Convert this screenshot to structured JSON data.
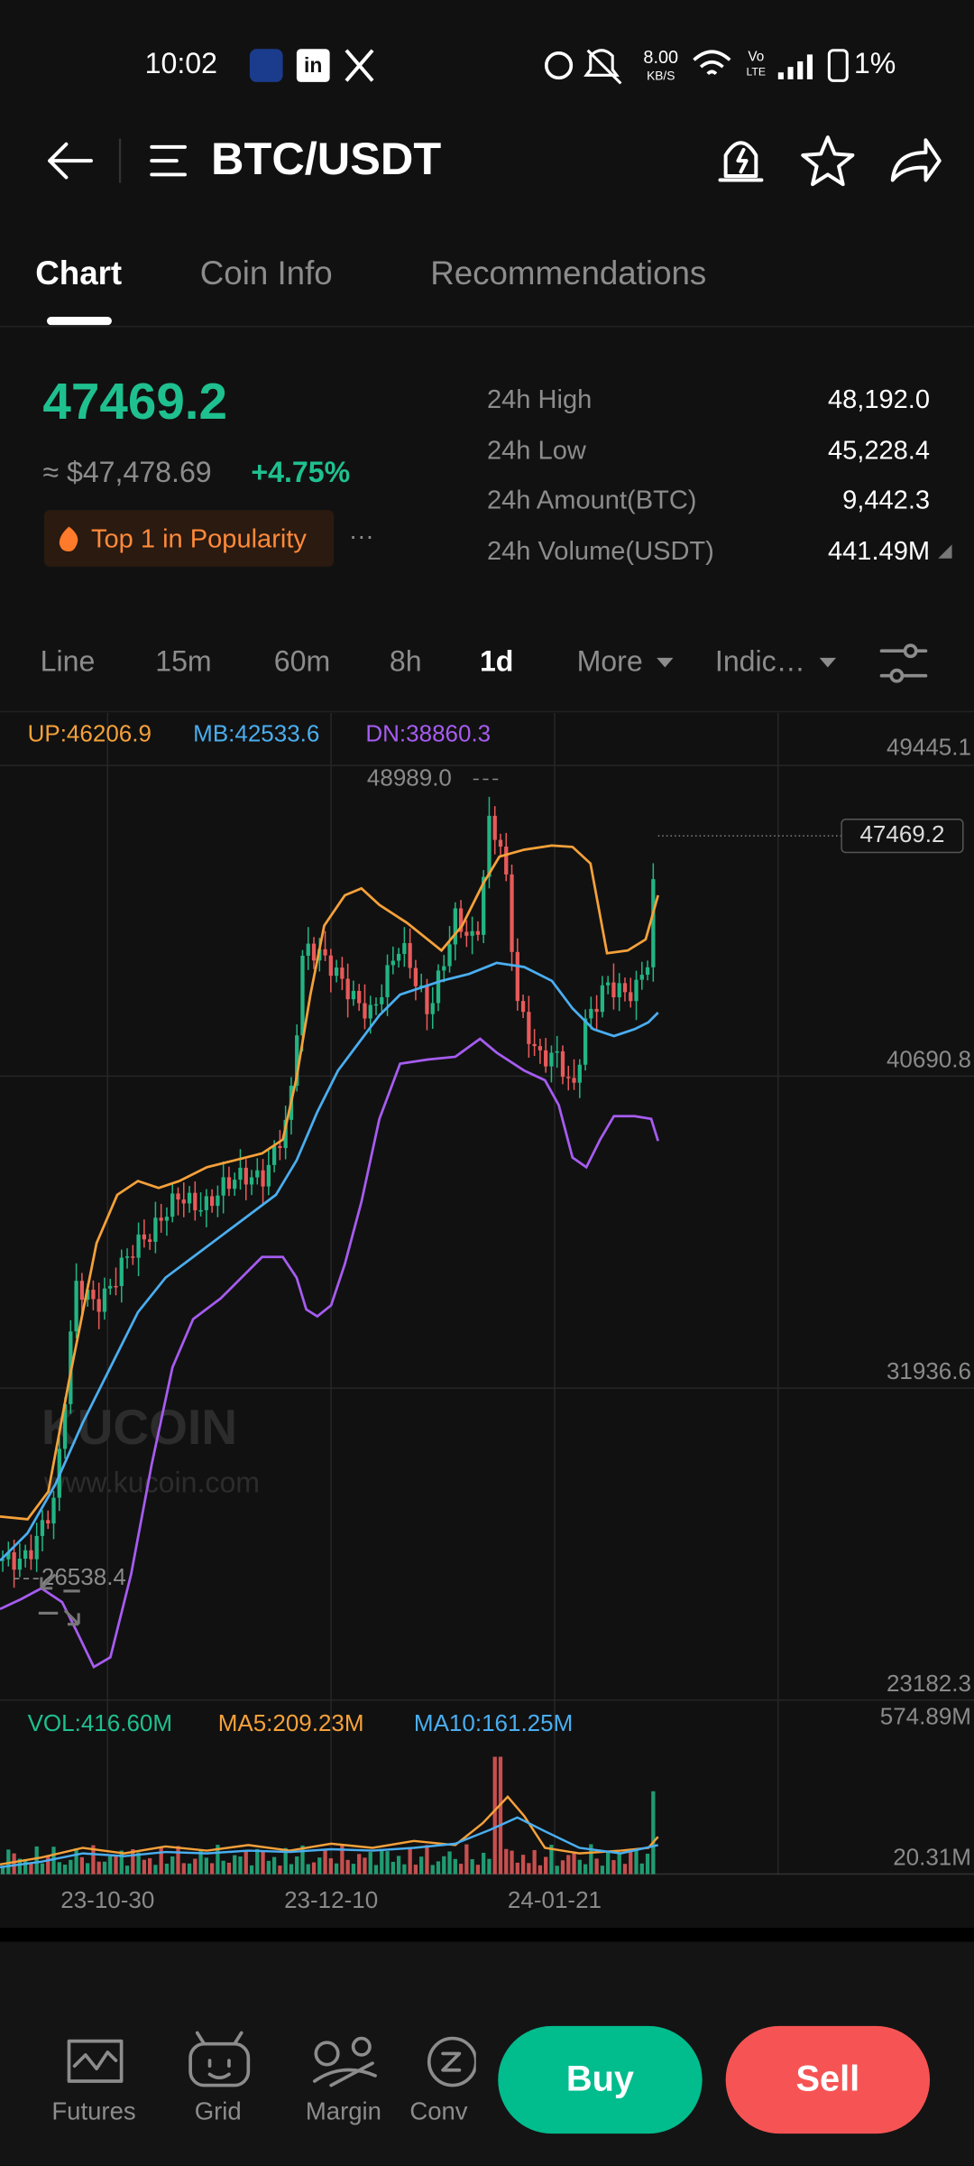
{
  "status_bar": {
    "time": "10:02",
    "net_speed": "8.00",
    "net_unit": "KB/S",
    "volte_top": "Vo",
    "volte_bottom": "LTE",
    "battery": "1%"
  },
  "header": {
    "title": "BTC/USDT"
  },
  "tabs": [
    "Chart",
    "Coin Info",
    "Recommendations"
  ],
  "price": {
    "last": "47469.2",
    "fiat": "≈ $47,478.69",
    "change": "+4.75%",
    "badge": "Top 1 in Popularity",
    "more": "···"
  },
  "stats": [
    {
      "label": "24h High",
      "value": "48,192.0"
    },
    {
      "label": "24h Low",
      "value": "45,228.4"
    },
    {
      "label": "24h Amount(BTC)",
      "value": "9,442.3"
    },
    {
      "label": "24h Volume(USDT)",
      "value": "441.49M"
    }
  ],
  "intervals": [
    "Line",
    "15m",
    "60m",
    "8h",
    "1d",
    "More",
    "Indic…"
  ],
  "chart": {
    "indicators": [
      "UP:46206.9",
      "MB:42533.6",
      "DN:38860.3"
    ],
    "price_axis": [
      "49445.1",
      "40690.8",
      "31936.6",
      "23182.3"
    ],
    "high_label": "48989.0",
    "last_price": "47469.2",
    "low_label": "26538.4",
    "watermark": [
      "KUCOIN",
      "www.kucoin.com"
    ],
    "volume_legend": [
      "VOL:416.60M",
      "MA5:209.23M",
      "MA10:161.25M"
    ],
    "volume_axis": [
      "574.89M",
      "20.31M"
    ],
    "dates": [
      "23-10-30",
      "23-12-10",
      "24-01-21"
    ]
  },
  "bottom_nav": {
    "items": [
      "Futures",
      "Grid",
      "Margin",
      "Conv"
    ],
    "buy": "Buy",
    "sell": "Sell"
  }
}
